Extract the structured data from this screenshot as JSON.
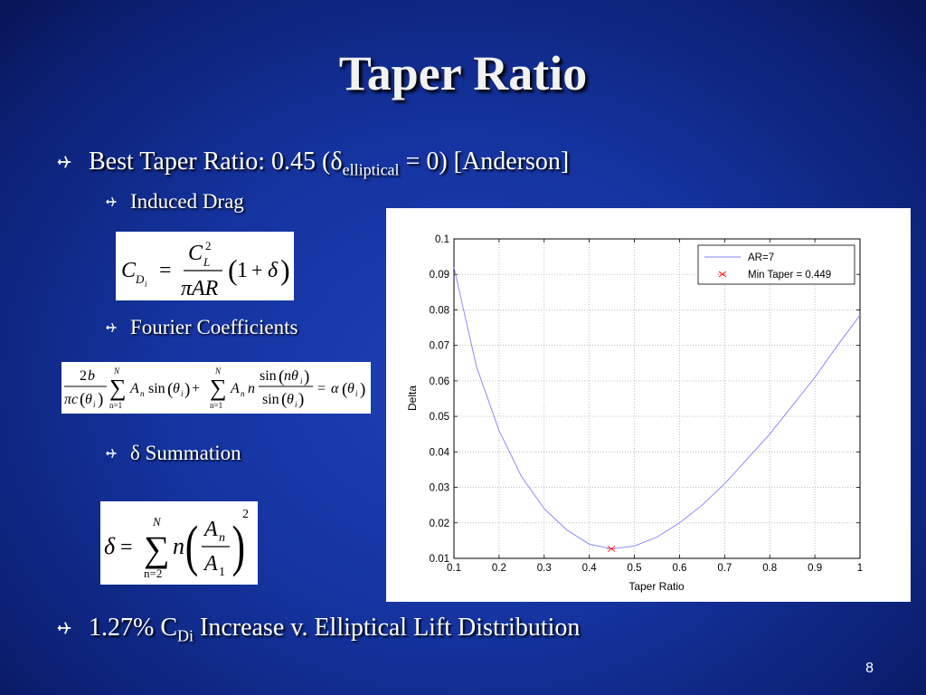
{
  "slide": {
    "title": "Taper Ratio",
    "page_number": "8"
  },
  "bullets": {
    "b1": {
      "prefix": "Best Taper Ratio: 0.45 (",
      "delta": "δ",
      "sub": "elliptical",
      "suffix": " = 0) [Anderson]"
    },
    "sub1": "Induced Drag",
    "sub2": "Fourier Coefficients",
    "sub3": "δ Summation",
    "b2": {
      "prefix": "1.27% C",
      "sub": "Di",
      "suffix": " Increase v. Elliptical Lift Distribution"
    }
  },
  "icons": {
    "bullet": "airplane-bullet-icon"
  },
  "chart_data": {
    "type": "line",
    "xlabel": "Taper Ratio",
    "ylabel": "Delta",
    "xlim": [
      0.1,
      1.0
    ],
    "ylim": [
      0.01,
      0.1
    ],
    "xticks": [
      "0.1",
      "0.2",
      "0.3",
      "0.4",
      "0.5",
      "0.6",
      "0.7",
      "0.8",
      "0.9",
      "1"
    ],
    "yticks": [
      "0.01",
      "0.02",
      "0.03",
      "0.04",
      "0.05",
      "0.06",
      "0.07",
      "0.08",
      "0.09",
      "0.1"
    ],
    "grid": true,
    "legend_position": "top-right",
    "series": [
      {
        "name": "AR=7",
        "color": "#8080ff",
        "x": [
          0.1,
          0.15,
          0.2,
          0.25,
          0.3,
          0.35,
          0.4,
          0.45,
          0.5,
          0.55,
          0.6,
          0.65,
          0.7,
          0.75,
          0.8,
          0.85,
          0.9,
          0.95,
          1.0
        ],
        "y": [
          0.092,
          0.064,
          0.046,
          0.033,
          0.024,
          0.018,
          0.014,
          0.0127,
          0.0135,
          0.016,
          0.02,
          0.025,
          0.031,
          0.038,
          0.045,
          0.053,
          0.061,
          0.07,
          0.0785
        ]
      }
    ],
    "marker": {
      "name": "Min Taper = 0.449",
      "x": 0.449,
      "y": 0.0127,
      "color": "#ff0000"
    }
  }
}
